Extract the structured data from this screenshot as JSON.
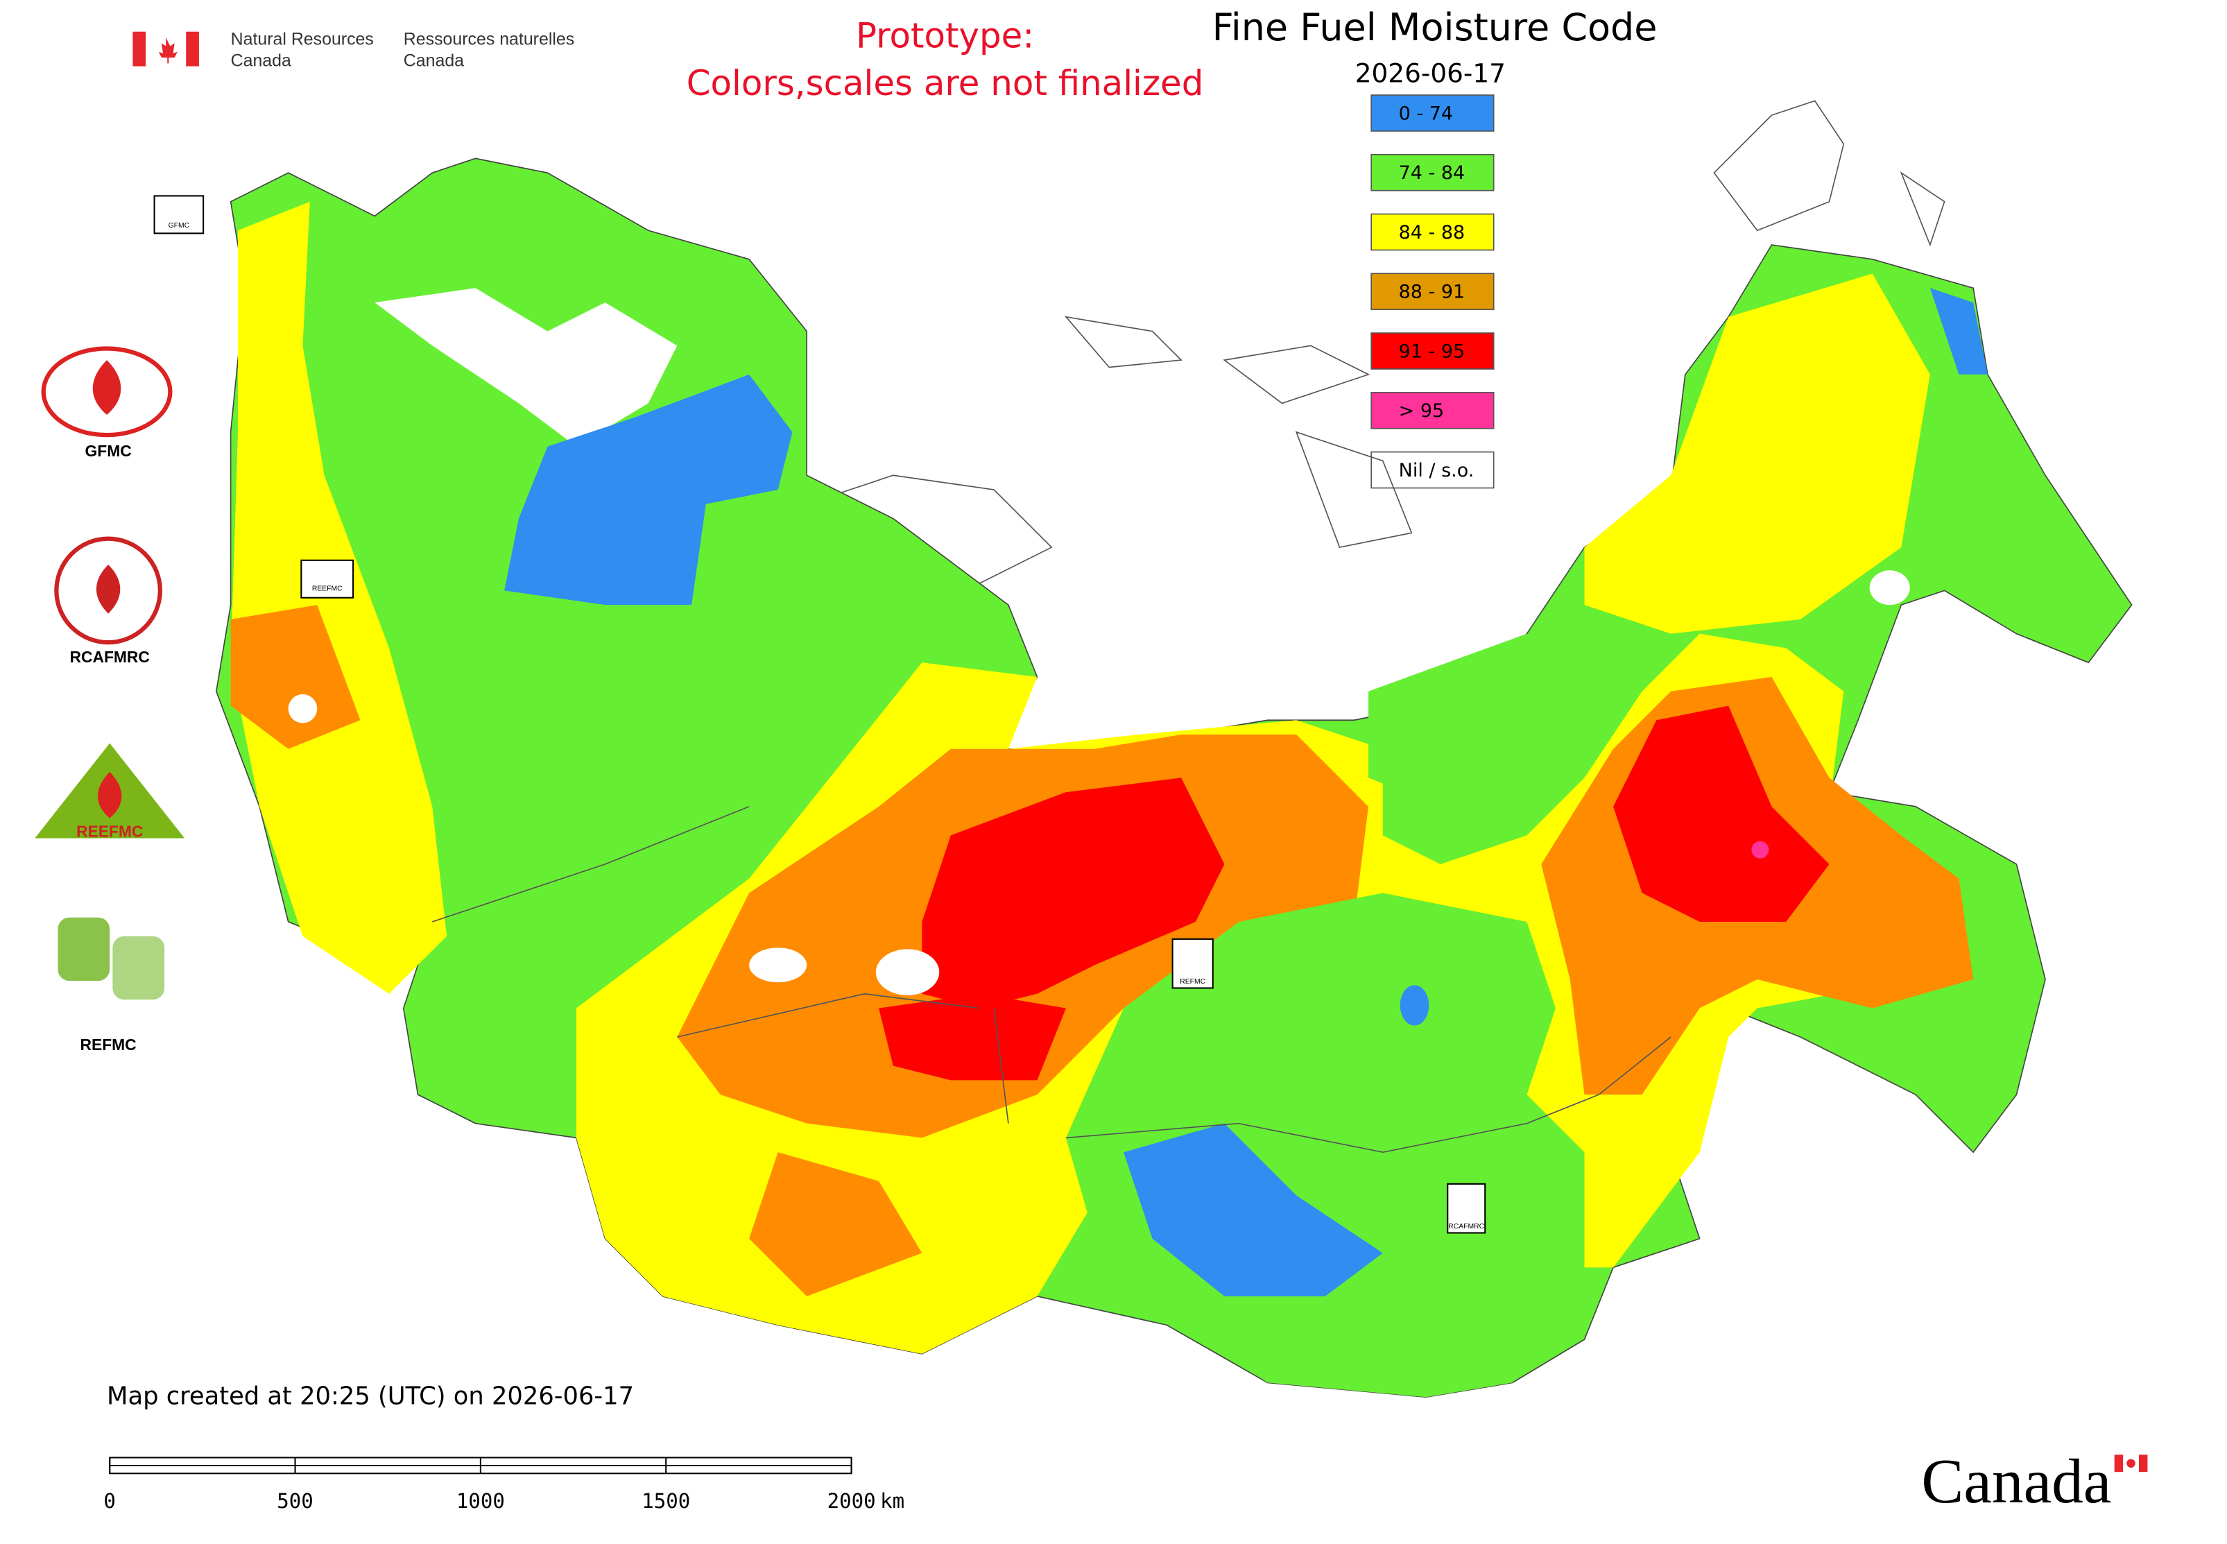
{
  "department": {
    "en_line1": "Natural Resources",
    "en_line2": "Canada",
    "fr_line1": "Ressources naturelles",
    "fr_line2": "Canada"
  },
  "notice": [
    "Prototype:",
    "Colors,scales are not finalized"
  ],
  "title": "Fine Fuel Moisture Code",
  "date": "2026-06-17",
  "legend": [
    {
      "label": "0 - 74",
      "color": "#2f8ef0"
    },
    {
      "label": "74 - 84",
      "color": "#66ee33"
    },
    {
      "label": "84 - 88",
      "color": "#ffff00"
    },
    {
      "label": "88 - 91",
      "color": "#e09a00"
    },
    {
      "label": "91 - 95",
      "color": "#ff0000"
    },
    {
      "label": "> 95",
      "color": "#ff3399"
    },
    {
      "label": "Nil / s.o.",
      "color": "#ffffff"
    }
  ],
  "partner_logos": {
    "gfmc": "GFMC",
    "rcafmrc": "RCAFMRC",
    "reefmc": "REEFMC",
    "refmc": "REFMC"
  },
  "map_markers": [
    "GFMC",
    "REEFMC",
    "REFMC",
    "RCAFMRC"
  ],
  "footer": {
    "created": "Map created at 20:25 (UTC) on 2026-06-17",
    "scale_bar": {
      "ticks": [
        0,
        500,
        1000,
        1500,
        2000
      ],
      "unit": "km"
    },
    "wordmark": "Canada"
  }
}
